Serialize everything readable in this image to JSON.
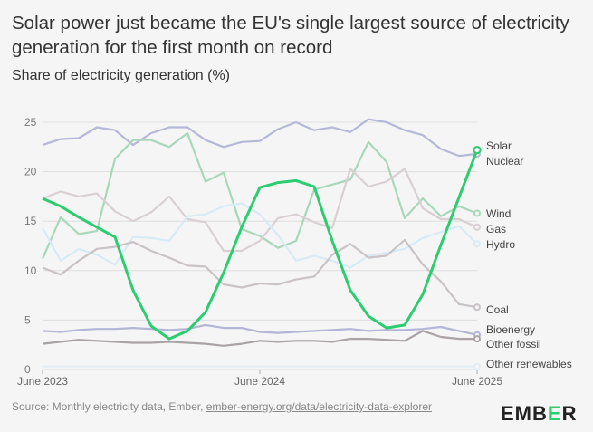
{
  "header": {
    "title": "Solar power just became the EU's single largest source of electricity generation for the first month on record",
    "subtitle": "Share of electricity generation (%)"
  },
  "footer": {
    "source_prefix": "Source: Monthly electricity data, Ember, ",
    "source_link": "ember-energy.org/data/electricity-data-explorer",
    "brand_left": "EMB",
    "brand_accent": "E",
    "brand_right": "R"
  },
  "chart_data": {
    "type": "line",
    "title": "Solar power just became the EU's single largest source of electricity generation for the first month on record",
    "ylabel": "Share of electricity generation (%)",
    "xlabel": "",
    "ylim": [
      0,
      25
    ],
    "yticks": [
      0,
      5,
      10,
      15,
      20,
      25
    ],
    "xticks": [
      {
        "index": 0,
        "label": "June 2023"
      },
      {
        "index": 12,
        "label": "June 2024"
      },
      {
        "index": 24,
        "label": "June 2025"
      }
    ],
    "x": [
      "Jun 2023",
      "Jul 2023",
      "Aug 2023",
      "Sep 2023",
      "Oct 2023",
      "Nov 2023",
      "Dec 2023",
      "Jan 2024",
      "Feb 2024",
      "Mar 2024",
      "Apr 2024",
      "May 2024",
      "Jun 2024",
      "Jul 2024",
      "Aug 2024",
      "Sep 2024",
      "Oct 2024",
      "Nov 2024",
      "Dec 2024",
      "Jan 2025",
      "Feb 2025",
      "Mar 2025",
      "Apr 2025",
      "May 2025",
      "Jun 2025"
    ],
    "grid": true,
    "series": [
      {
        "name": "Solar",
        "color": "#2ecc71",
        "highlight": true,
        "values": [
          17.3,
          16.5,
          15.4,
          14.4,
          13.4,
          8.0,
          4.4,
          3.1,
          3.9,
          5.8,
          9.8,
          14.4,
          18.4,
          18.9,
          19.1,
          18.5,
          13.0,
          8.0,
          5.4,
          4.2,
          4.5,
          7.6,
          12.6,
          17.4,
          22.2
        ]
      },
      {
        "name": "Nuclear",
        "color": "#b6b8d9",
        "values": [
          22.7,
          23.3,
          23.4,
          24.5,
          24.2,
          22.7,
          23.9,
          24.5,
          24.5,
          23.2,
          22.5,
          23.0,
          23.1,
          24.3,
          25.0,
          24.2,
          24.5,
          24.0,
          25.3,
          25.0,
          24.2,
          23.7,
          22.3,
          21.6,
          21.8
        ]
      },
      {
        "name": "Wind",
        "color": "#a8d8b9",
        "values": [
          11.2,
          15.4,
          13.7,
          14.0,
          21.3,
          23.2,
          23.2,
          22.5,
          23.9,
          19.0,
          19.9,
          14.2,
          13.5,
          12.3,
          13.0,
          18.2,
          18.7,
          19.2,
          23.0,
          21.0,
          15.3,
          17.3,
          15.5,
          16.5,
          15.8
        ]
      },
      {
        "name": "Gas",
        "color": "#d9d0d4",
        "values": [
          17.3,
          18.0,
          17.5,
          17.8,
          16.0,
          15.0,
          15.9,
          17.5,
          15.2,
          14.9,
          12.0,
          12.0,
          13.0,
          15.3,
          15.7,
          14.9,
          14.3,
          20.3,
          18.5,
          19.0,
          20.3,
          16.3,
          15.2,
          15.2,
          14.4
        ]
      },
      {
        "name": "Hydro",
        "color": "#d6ebf5",
        "values": [
          14.3,
          11.0,
          12.2,
          11.6,
          10.6,
          13.4,
          13.3,
          13.0,
          15.5,
          15.7,
          16.5,
          16.8,
          15.7,
          13.6,
          11.0,
          11.5,
          11.0,
          10.3,
          11.5,
          11.8,
          12.2,
          13.3,
          13.9,
          14.5,
          12.7
        ]
      },
      {
        "name": "Coal",
        "color": "#c9c2c6",
        "values": [
          10.3,
          9.6,
          11.0,
          12.2,
          12.4,
          12.9,
          12.0,
          11.3,
          10.5,
          10.4,
          8.6,
          8.3,
          8.7,
          8.6,
          9.1,
          9.4,
          11.6,
          12.7,
          11.3,
          11.5,
          13.1,
          10.6,
          8.9,
          6.6,
          6.3
        ]
      },
      {
        "name": "Bioenergy",
        "color": "#b3b6d6",
        "values": [
          3.9,
          3.8,
          4.0,
          4.1,
          4.1,
          4.2,
          4.1,
          4.0,
          4.1,
          4.5,
          4.2,
          4.2,
          3.8,
          3.7,
          3.8,
          3.9,
          4.0,
          4.1,
          3.9,
          4.0,
          4.0,
          4.1,
          4.3,
          3.9,
          3.5
        ]
      },
      {
        "name": "Other fossil",
        "color": "#aaa3a6",
        "values": [
          2.6,
          2.8,
          3.0,
          2.9,
          2.8,
          2.7,
          2.7,
          2.8,
          2.7,
          2.6,
          2.4,
          2.6,
          2.9,
          2.8,
          2.9,
          2.9,
          2.8,
          3.1,
          3.1,
          3.0,
          2.9,
          3.9,
          3.3,
          3.1,
          3.1
        ]
      },
      {
        "name": "Other renewables",
        "color": "#e3eef3",
        "values": [
          0.3,
          0.3,
          0.3,
          0.3,
          0.3,
          0.3,
          0.3,
          0.3,
          0.3,
          0.3,
          0.3,
          0.3,
          0.3,
          0.3,
          0.3,
          0.3,
          0.3,
          0.3,
          0.3,
          0.3,
          0.3,
          0.3,
          0.3,
          0.3,
          0.3
        ]
      }
    ]
  }
}
